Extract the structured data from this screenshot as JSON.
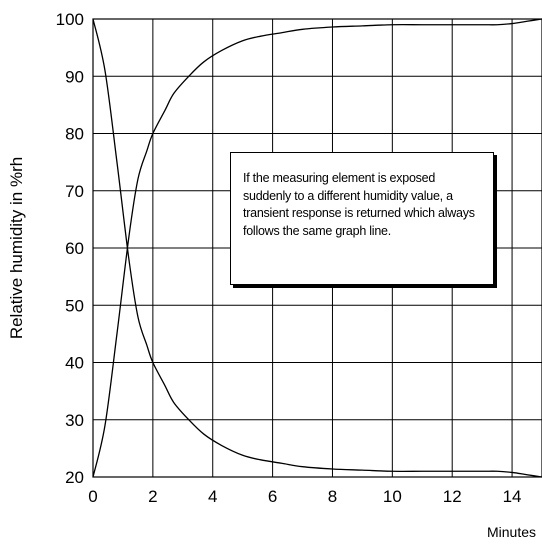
{
  "chart_data": {
    "type": "line",
    "title": "",
    "xlabel": "Minutes",
    "ylabel": "Relative humidity in %rh",
    "xlim": [
      0,
      15
    ],
    "ylim": [
      20,
      100
    ],
    "grid": true,
    "x_ticks": [
      "0",
      "2",
      "4",
      "6",
      "8",
      "10",
      "12",
      "14"
    ],
    "y_ticks": [
      "20",
      "30",
      "40",
      "50",
      "60",
      "70",
      "80",
      "90",
      "100"
    ],
    "series": [
      {
        "x": [
          0,
          0.4,
          0.8,
          1.2,
          1.5,
          1.8,
          2.0,
          2.4,
          2.7,
          3.2,
          3.7,
          4.3,
          5.0,
          5.6,
          6.3,
          7.0,
          8.0,
          9.0,
          10.0,
          11.0,
          12.0,
          13.0,
          13.5,
          14.0,
          14.5,
          15.0
        ],
        "values": [
          20,
          29,
          45,
          62,
          72,
          77,
          80,
          84,
          87,
          90,
          92.5,
          94.5,
          96.2,
          97,
          97.6,
          98.2,
          98.6,
          98.8,
          99,
          99,
          99,
          99,
          99,
          99.2,
          99.6,
          100
        ]
      },
      {
        "x": [
          0,
          0.4,
          0.8,
          1.2,
          1.5,
          1.8,
          2.0,
          2.4,
          2.7,
          3.2,
          3.7,
          4.3,
          5.0,
          5.6,
          6.3,
          7.0,
          8.0,
          9.0,
          10.0,
          11.0,
          12.0,
          13.0,
          13.5,
          14.0,
          14.5,
          15.0
        ],
        "values": [
          100,
          91,
          75,
          58,
          48,
          43,
          40,
          36,
          33,
          30,
          27.5,
          25.5,
          23.8,
          23,
          22.4,
          21.8,
          21.4,
          21.2,
          21,
          21,
          21,
          21,
          21,
          20.8,
          20.4,
          20
        ]
      }
    ],
    "annotation": {
      "text": "If the measuring element is exposed suddenly  to a different humidity value, a transient response is returned which always follows the same graph line."
    }
  }
}
